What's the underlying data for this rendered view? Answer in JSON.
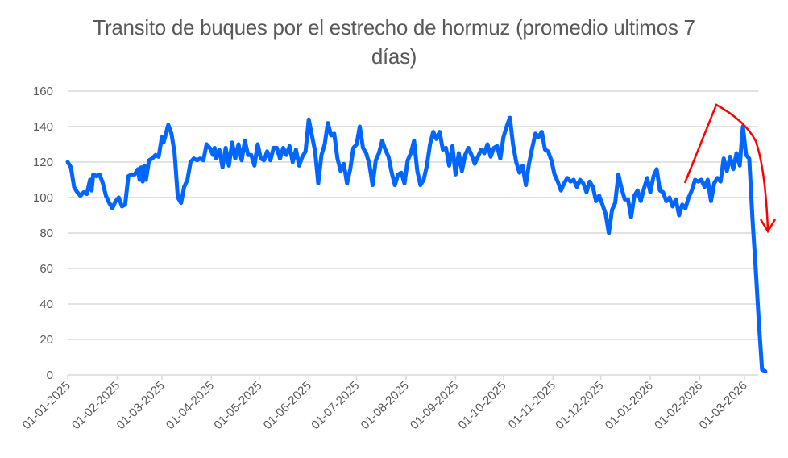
{
  "chart_data": {
    "type": "line",
    "title": "Transito de buques por el estrecho de hormuz (promedio ultimos 7 días)",
    "title_lines": [
      "Transito de buques por el estrecho de hormuz (promedio ultimos 7",
      "días)"
    ],
    "xlabel": "",
    "ylabel": "",
    "ylim": [
      0,
      160
    ],
    "yticks": [
      0,
      20,
      40,
      60,
      80,
      100,
      120,
      140,
      160
    ],
    "xticks": [
      "01-01-2025",
      "01-02-2025",
      "01-03-2025",
      "01-04-2025",
      "01-05-2025",
      "01-06-2025",
      "01-07-2025",
      "01-08-2025",
      "01-09-2025",
      "01-10-2025",
      "01-11-2025",
      "01-12-2025",
      "01-01-2026",
      "01-02-2026",
      "01-03-2026"
    ],
    "grid": "horizontal",
    "legend": "none",
    "series": [
      {
        "name": "Transito de buques (promedio 7 días)",
        "color": "#0066FF",
        "points": [
          [
            "01-01-2025",
            120
          ],
          [
            "03-01-2025",
            117
          ],
          [
            "05-01-2025",
            106
          ],
          [
            "07-01-2025",
            103
          ],
          [
            "09-01-2025",
            101
          ],
          [
            "11-01-2025",
            103
          ],
          [
            "13-01-2025",
            102
          ],
          [
            "15-01-2025",
            110
          ],
          [
            "16-01-2025",
            104
          ],
          [
            "17-01-2025",
            113
          ],
          [
            "19-01-2025",
            112
          ],
          [
            "21-01-2025",
            113
          ],
          [
            "23-01-2025",
            108
          ],
          [
            "25-01-2025",
            101
          ],
          [
            "27-01-2025",
            97
          ],
          [
            "29-01-2025",
            94
          ],
          [
            "31-01-2025",
            98
          ],
          [
            "02-02-2025",
            100
          ],
          [
            "04-02-2025",
            95
          ],
          [
            "06-02-2025",
            96
          ],
          [
            "08-02-2025",
            112
          ],
          [
            "10-02-2025",
            113
          ],
          [
            "12-02-2025",
            113
          ],
          [
            "14-02-2025",
            116
          ],
          [
            "15-02-2025",
            110
          ],
          [
            "16-02-2025",
            117
          ],
          [
            "17-02-2025",
            109
          ],
          [
            "18-02-2025",
            118
          ],
          [
            "19-02-2025",
            110
          ],
          [
            "21-02-2025",
            121
          ],
          [
            "23-02-2025",
            122
          ],
          [
            "25-02-2025",
            124
          ],
          [
            "27-02-2025",
            123
          ],
          [
            "01-03-2025",
            134
          ],
          [
            "02-03-2025",
            131
          ],
          [
            "03-03-2025",
            134
          ],
          [
            "05-03-2025",
            141
          ],
          [
            "07-03-2025",
            136
          ],
          [
            "09-03-2025",
            125
          ],
          [
            "11-03-2025",
            100
          ],
          [
            "13-03-2025",
            97
          ],
          [
            "15-03-2025",
            106
          ],
          [
            "17-03-2025",
            110
          ],
          [
            "19-03-2025",
            120
          ],
          [
            "21-03-2025",
            122
          ],
          [
            "23-03-2025",
            121
          ],
          [
            "25-03-2025",
            122
          ],
          [
            "27-03-2025",
            121
          ],
          [
            "29-03-2025",
            130
          ],
          [
            "31-03-2025",
            128
          ],
          [
            "02-04-2025",
            124
          ],
          [
            "03-04-2025",
            128
          ],
          [
            "04-04-2025",
            122
          ],
          [
            "06-04-2025",
            127
          ],
          [
            "08-04-2025",
            117
          ],
          [
            "10-04-2025",
            128
          ],
          [
            "12-04-2025",
            118
          ],
          [
            "14-04-2025",
            131
          ],
          [
            "16-04-2025",
            122
          ],
          [
            "18-04-2025",
            130
          ],
          [
            "20-04-2025",
            121
          ],
          [
            "22-04-2025",
            132
          ],
          [
            "24-04-2025",
            124
          ],
          [
            "26-04-2025",
            124
          ],
          [
            "28-04-2025",
            118
          ],
          [
            "30-04-2025",
            130
          ],
          [
            "02-05-2025",
            122
          ],
          [
            "04-05-2025",
            121
          ],
          [
            "06-05-2025",
            126
          ],
          [
            "08-05-2025",
            121
          ],
          [
            "10-05-2025",
            128
          ],
          [
            "12-05-2025",
            128
          ],
          [
            "14-05-2025",
            122
          ],
          [
            "16-05-2025",
            128
          ],
          [
            "18-05-2025",
            124
          ],
          [
            "20-05-2025",
            129
          ],
          [
            "22-05-2025",
            120
          ],
          [
            "24-05-2025",
            127
          ],
          [
            "26-05-2025",
            118
          ],
          [
            "28-05-2025",
            123
          ],
          [
            "30-05-2025",
            126
          ],
          [
            "01-06-2025",
            144
          ],
          [
            "03-06-2025",
            135
          ],
          [
            "05-06-2025",
            126
          ],
          [
            "07-06-2025",
            108
          ],
          [
            "09-06-2025",
            124
          ],
          [
            "11-06-2025",
            130
          ],
          [
            "13-06-2025",
            142
          ],
          [
            "15-06-2025",
            135
          ],
          [
            "17-06-2025",
            136
          ],
          [
            "19-06-2025",
            122
          ],
          [
            "21-06-2025",
            115
          ],
          [
            "23-06-2025",
            119
          ],
          [
            "25-06-2025",
            108
          ],
          [
            "27-06-2025",
            116
          ],
          [
            "29-06-2025",
            128
          ],
          [
            "01-07-2025",
            130
          ],
          [
            "03-07-2025",
            140
          ],
          [
            "05-07-2025",
            128
          ],
          [
            "07-07-2025",
            125
          ],
          [
            "09-07-2025",
            119
          ],
          [
            "11-07-2025",
            107
          ],
          [
            "13-07-2025",
            121
          ],
          [
            "15-07-2025",
            125
          ],
          [
            "17-07-2025",
            132
          ],
          [
            "19-07-2025",
            127
          ],
          [
            "21-07-2025",
            123
          ],
          [
            "23-07-2025",
            114
          ],
          [
            "25-07-2025",
            107
          ],
          [
            "27-07-2025",
            113
          ],
          [
            "29-07-2025",
            114
          ],
          [
            "31-07-2025",
            108
          ],
          [
            "02-08-2025",
            121
          ],
          [
            "04-08-2025",
            125
          ],
          [
            "06-08-2025",
            132
          ],
          [
            "08-08-2025",
            115
          ],
          [
            "10-08-2025",
            107
          ],
          [
            "12-08-2025",
            110
          ],
          [
            "14-08-2025",
            118
          ],
          [
            "16-08-2025",
            130
          ],
          [
            "18-08-2025",
            137
          ],
          [
            "20-08-2025",
            133
          ],
          [
            "22-08-2025",
            137
          ],
          [
            "24-08-2025",
            127
          ],
          [
            "26-08-2025",
            128
          ],
          [
            "28-08-2025",
            118
          ],
          [
            "30-08-2025",
            129
          ],
          [
            "01-09-2025",
            113
          ],
          [
            "03-09-2025",
            125
          ],
          [
            "05-09-2025",
            115
          ],
          [
            "07-09-2025",
            124
          ],
          [
            "09-09-2025",
            128
          ],
          [
            "11-09-2025",
            124
          ],
          [
            "13-09-2025",
            119
          ],
          [
            "15-09-2025",
            123
          ],
          [
            "17-09-2025",
            127
          ],
          [
            "19-09-2025",
            125
          ],
          [
            "21-09-2025",
            130
          ],
          [
            "23-09-2025",
            123
          ],
          [
            "25-09-2025",
            128
          ],
          [
            "27-09-2025",
            129
          ],
          [
            "29-09-2025",
            122
          ],
          [
            "01-10-2025",
            134
          ],
          [
            "03-10-2025",
            140
          ],
          [
            "05-10-2025",
            145
          ],
          [
            "07-10-2025",
            130
          ],
          [
            "09-10-2025",
            120
          ],
          [
            "11-10-2025",
            114
          ],
          [
            "13-10-2025",
            118
          ],
          [
            "15-10-2025",
            107
          ],
          [
            "17-10-2025",
            119
          ],
          [
            "19-10-2025",
            128
          ],
          [
            "21-10-2025",
            136
          ],
          [
            "23-10-2025",
            134
          ],
          [
            "25-10-2025",
            137
          ],
          [
            "27-10-2025",
            127
          ],
          [
            "29-10-2025",
            126
          ],
          [
            "31-10-2025",
            121
          ],
          [
            "02-11-2025",
            113
          ],
          [
            "04-11-2025",
            109
          ],
          [
            "06-11-2025",
            104
          ],
          [
            "08-11-2025",
            108
          ],
          [
            "10-11-2025",
            111
          ],
          [
            "12-11-2025",
            109
          ],
          [
            "14-11-2025",
            110
          ],
          [
            "16-11-2025",
            106
          ],
          [
            "18-11-2025",
            110
          ],
          [
            "20-11-2025",
            108
          ],
          [
            "22-11-2025",
            103
          ],
          [
            "24-11-2025",
            109
          ],
          [
            "26-11-2025",
            106
          ],
          [
            "28-11-2025",
            98
          ],
          [
            "30-11-2025",
            101
          ],
          [
            "02-12-2025",
            96
          ],
          [
            "04-12-2025",
            91
          ],
          [
            "06-12-2025",
            80
          ],
          [
            "08-12-2025",
            93
          ],
          [
            "10-12-2025",
            97
          ],
          [
            "12-12-2025",
            113
          ],
          [
            "14-12-2025",
            105
          ],
          [
            "16-12-2025",
            99
          ],
          [
            "18-12-2025",
            99
          ],
          [
            "20-12-2025",
            89
          ],
          [
            "22-12-2025",
            101
          ],
          [
            "24-12-2025",
            104
          ],
          [
            "26-12-2025",
            98
          ],
          [
            "28-12-2025",
            105
          ],
          [
            "30-12-2025",
            111
          ],
          [
            "01-01-2026",
            103
          ],
          [
            "03-01-2026",
            112
          ],
          [
            "05-01-2026",
            116
          ],
          [
            "07-01-2026",
            104
          ],
          [
            "09-01-2026",
            103
          ],
          [
            "11-01-2026",
            98
          ],
          [
            "13-01-2026",
            100
          ],
          [
            "15-01-2026",
            95
          ],
          [
            "17-01-2026",
            99
          ],
          [
            "19-01-2026",
            90
          ],
          [
            "21-01-2026",
            96
          ],
          [
            "23-01-2026",
            94
          ],
          [
            "25-01-2026",
            100
          ],
          [
            "27-01-2026",
            104
          ],
          [
            "29-01-2026",
            110
          ],
          [
            "31-01-2026",
            109
          ],
          [
            "02-02-2026",
            110
          ],
          [
            "04-02-2026",
            106
          ],
          [
            "06-02-2026",
            110
          ],
          [
            "08-02-2026",
            98
          ],
          [
            "10-02-2026",
            108
          ],
          [
            "12-02-2026",
            111
          ],
          [
            "14-02-2026",
            109
          ],
          [
            "16-02-2026",
            122
          ],
          [
            "18-02-2026",
            115
          ],
          [
            "20-02-2026",
            123
          ],
          [
            "22-02-2026",
            116
          ],
          [
            "24-02-2026",
            125
          ],
          [
            "26-02-2026",
            118
          ],
          [
            "28-02-2026",
            140
          ],
          [
            "02-03-2026",
            124
          ],
          [
            "04-03-2026",
            122
          ],
          [
            "06-03-2026",
            88
          ],
          [
            "08-03-2026",
            60
          ],
          [
            "10-03-2026",
            30
          ],
          [
            "12-03-2026",
            3
          ],
          [
            "14-03-2026",
            2
          ]
        ]
      }
    ],
    "annotations": [
      {
        "type": "arrow",
        "color": "#FF0000",
        "description": "Red hand-drawn arrow rising from ~Jan 2026 to a peak above 150 then curving down sharply to ~80 at the right edge, highlighting the collapse in transits"
      }
    ]
  }
}
